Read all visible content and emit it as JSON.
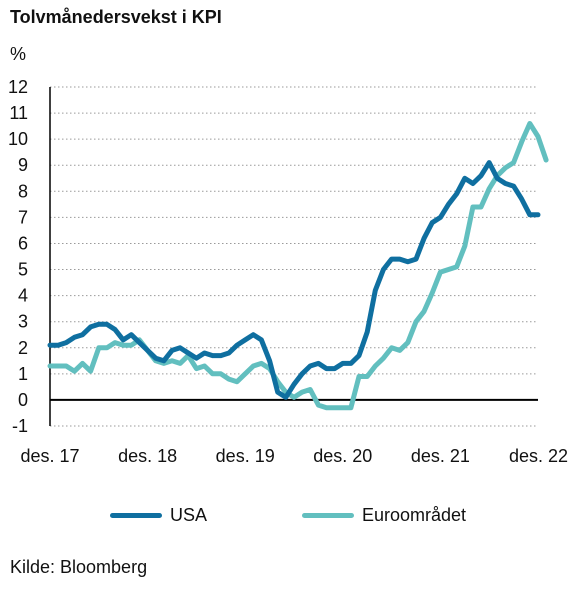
{
  "title": "Tolvmånedersvekst i KPI",
  "y_unit": "%",
  "source": "Kilde: Bloomberg",
  "colors": {
    "USA": "#0f6fa0",
    "Euroomradet": "#62bfbf",
    "grid": "#9a9a9a",
    "axis": "#000000"
  },
  "chart_data": {
    "type": "line",
    "title": "Tolvmånedersvekst i KPI",
    "ylabel": "%",
    "xlabel": "",
    "ylim": [
      -1,
      12
    ],
    "yticks": [
      12,
      11,
      10,
      9,
      8,
      7,
      6,
      5,
      4,
      3,
      2,
      1,
      0,
      -1
    ],
    "xlim": [
      2017.917,
      2022.917
    ],
    "xticks": [
      {
        "x": 2017.917,
        "label": "des. 17"
      },
      {
        "x": 2018.917,
        "label": "des. 18"
      },
      {
        "x": 2019.917,
        "label": "des. 19"
      },
      {
        "x": 2020.917,
        "label": "des. 20"
      },
      {
        "x": 2021.917,
        "label": "des. 21"
      },
      {
        "x": 2022.917,
        "label": "des. 22"
      }
    ],
    "grid": "horizontal dotted",
    "legend": "bottom",
    "series": [
      {
        "name": "USA",
        "color": "#0f6fa0",
        "points": [
          [
            2017.917,
            2.1
          ],
          [
            2018.0,
            2.1
          ],
          [
            2018.083,
            2.2
          ],
          [
            2018.167,
            2.4
          ],
          [
            2018.25,
            2.5
          ],
          [
            2018.333,
            2.8
          ],
          [
            2018.417,
            2.9
          ],
          [
            2018.5,
            2.9
          ],
          [
            2018.583,
            2.7
          ],
          [
            2018.667,
            2.3
          ],
          [
            2018.75,
            2.5
          ],
          [
            2018.833,
            2.2
          ],
          [
            2018.917,
            1.9
          ],
          [
            2019.0,
            1.6
          ],
          [
            2019.083,
            1.5
          ],
          [
            2019.167,
            1.9
          ],
          [
            2019.25,
            2.0
          ],
          [
            2019.333,
            1.8
          ],
          [
            2019.417,
            1.6
          ],
          [
            2019.5,
            1.8
          ],
          [
            2019.583,
            1.7
          ],
          [
            2019.667,
            1.7
          ],
          [
            2019.75,
            1.8
          ],
          [
            2019.833,
            2.1
          ],
          [
            2019.917,
            2.3
          ],
          [
            2020.0,
            2.5
          ],
          [
            2020.083,
            2.3
          ],
          [
            2020.167,
            1.5
          ],
          [
            2020.25,
            0.3
          ],
          [
            2020.333,
            0.1
          ],
          [
            2020.417,
            0.6
          ],
          [
            2020.5,
            1.0
          ],
          [
            2020.583,
            1.3
          ],
          [
            2020.667,
            1.4
          ],
          [
            2020.75,
            1.2
          ],
          [
            2020.833,
            1.2
          ],
          [
            2020.917,
            1.4
          ],
          [
            2021.0,
            1.4
          ],
          [
            2021.083,
            1.7
          ],
          [
            2021.167,
            2.6
          ],
          [
            2021.25,
            4.2
          ],
          [
            2021.333,
            5.0
          ],
          [
            2021.417,
            5.4
          ],
          [
            2021.5,
            5.4
          ],
          [
            2021.583,
            5.3
          ],
          [
            2021.667,
            5.4
          ],
          [
            2021.75,
            6.2
          ],
          [
            2021.833,
            6.8
          ],
          [
            2021.917,
            7.0
          ],
          [
            2022.0,
            7.5
          ],
          [
            2022.083,
            7.9
          ],
          [
            2022.167,
            8.5
          ],
          [
            2022.25,
            8.3
          ],
          [
            2022.333,
            8.6
          ],
          [
            2022.417,
            9.1
          ],
          [
            2022.5,
            8.5
          ],
          [
            2022.583,
            8.3
          ],
          [
            2022.667,
            8.2
          ],
          [
            2022.75,
            7.7
          ],
          [
            2022.833,
            7.1
          ],
          [
            2022.917,
            7.1
          ]
        ]
      },
      {
        "name": "Euroområdet",
        "color": "#62bfbf",
        "points": [
          [
            2017.917,
            1.3
          ],
          [
            2018.0,
            1.3
          ],
          [
            2018.083,
            1.3
          ],
          [
            2018.167,
            1.1
          ],
          [
            2018.25,
            1.4
          ],
          [
            2018.333,
            1.1
          ],
          [
            2018.417,
            2.0
          ],
          [
            2018.5,
            2.0
          ],
          [
            2018.583,
            2.2
          ],
          [
            2018.667,
            2.1
          ],
          [
            2018.75,
            2.1
          ],
          [
            2018.833,
            2.3
          ],
          [
            2018.917,
            1.9
          ],
          [
            2019.0,
            1.5
          ],
          [
            2019.083,
            1.4
          ],
          [
            2019.167,
            1.5
          ],
          [
            2019.25,
            1.4
          ],
          [
            2019.333,
            1.7
          ],
          [
            2019.417,
            1.2
          ],
          [
            2019.5,
            1.3
          ],
          [
            2019.583,
            1.0
          ],
          [
            2019.667,
            1.0
          ],
          [
            2019.75,
            0.8
          ],
          [
            2019.833,
            0.7
          ],
          [
            2019.917,
            1.0
          ],
          [
            2020.0,
            1.3
          ],
          [
            2020.083,
            1.4
          ],
          [
            2020.167,
            1.2
          ],
          [
            2020.25,
            0.7
          ],
          [
            2020.333,
            0.3
          ],
          [
            2020.417,
            0.1
          ],
          [
            2020.5,
            0.3
          ],
          [
            2020.583,
            0.4
          ],
          [
            2020.667,
            -0.2
          ],
          [
            2020.75,
            -0.3
          ],
          [
            2020.833,
            -0.3
          ],
          [
            2020.917,
            -0.3
          ],
          [
            2021.0,
            -0.3
          ],
          [
            2021.083,
            0.9
          ],
          [
            2021.167,
            0.9
          ],
          [
            2021.25,
            1.3
          ],
          [
            2021.333,
            1.6
          ],
          [
            2021.417,
            2.0
          ],
          [
            2021.5,
            1.9
          ],
          [
            2021.583,
            2.2
          ],
          [
            2021.667,
            3.0
          ],
          [
            2021.75,
            3.4
          ],
          [
            2021.833,
            4.1
          ],
          [
            2021.917,
            4.9
          ],
          [
            2022.0,
            5.0
          ],
          [
            2022.083,
            5.1
          ],
          [
            2022.167,
            5.9
          ],
          [
            2022.25,
            7.4
          ],
          [
            2022.333,
            7.4
          ],
          [
            2022.417,
            8.1
          ],
          [
            2022.5,
            8.6
          ],
          [
            2022.583,
            8.9
          ],
          [
            2022.667,
            9.1
          ],
          [
            2022.75,
            9.9
          ],
          [
            2022.833,
            10.6
          ],
          [
            2022.917,
            10.1
          ],
          [
            2023.0,
            9.2
          ]
        ]
      }
    ]
  }
}
